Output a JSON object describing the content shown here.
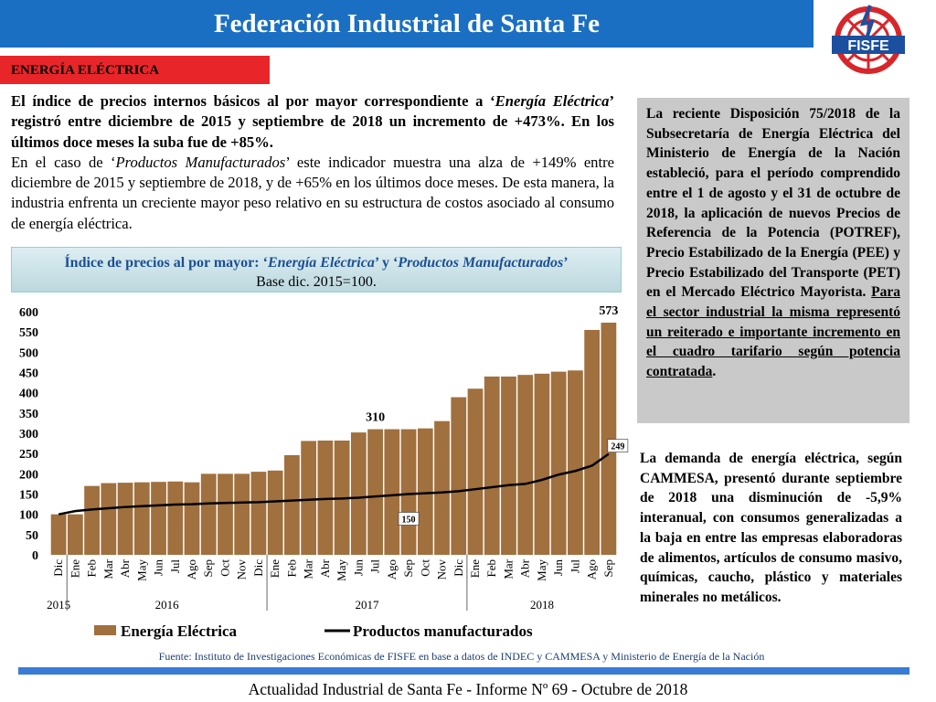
{
  "header": {
    "title": "Federación Industrial de Santa Fe",
    "logo": "FISFE"
  },
  "section": "ENERGÍA ELÉCTRICA",
  "intro": [
    [
      "El índice de precios internos básicos al por mayor correspondiente a ‘",
      "Energía Eléctrica",
      "’ registró entre diciembre de 2015 y septiembre de 2018 un incremento de +473%. En los últimos doce meses la suba fue de +85%."
    ],
    [
      "En el caso de ‘",
      "Productos Manufacturados",
      "’ este indicador muestra una alza de +149% entre diciembre de 2015 y septiembre de 2018, y de +65% en los últimos doce meses. De esta manera, la industria enfrenta un creciente mayor peso relativo en su estructura de costos asociado al consumo de energía eléctrica."
    ]
  ],
  "sidebox": [
    "La reciente Disposición 75/2018 de la Subsecretaría de Energía Eléctrica del Ministerio de Energía de la Nación estableció, para el período comprendido entre el 1 de agosto y el 31 de octubre de 2018, la aplicación de nuevos Precios de Referencia de la Potencia (POTREF), Precio Estabilizado de la Energía (PEE) y Precio Estabilizado del Transporte (PET) en el Mercado Eléctrico Mayorista. ",
    "Para el sector industrial la misma representó un reiterado e importante incremento en el cuadro tarifario según potencia contratada",
    "."
  ],
  "demand": "La demanda de energía eléctrica, según CAMMESA, presentó durante septiembre de 2018 una disminución de -5,9% interanual, con consumos generalizadas a la baja en entre las empresas elaboradoras de alimentos, artículos de consumo masivo, químicas, caucho, plástico y materiales minerales no metálicos.",
  "source": "Fuente: Instituto de Investigaciones Económicas de FISFE en base a datos de  INDEC y CAMMESA y Ministerio de Energía de la Nación",
  "footer": "Actualidad Industrial de Santa Fe - Informe Nº 69 - Octubre de 2018",
  "chart_data": {
    "type": "bar_line",
    "title": [
      "Índice de precios al por mayor: ‘",
      "Energía Eléctrica",
      "’ y ‘",
      "Productos Manufacturados",
      "’"
    ],
    "subtitle": "Base dic. 2015=100.",
    "categories": [
      "Dic",
      "Ene",
      "Feb",
      "Mar",
      "Abr",
      "May",
      "Jun",
      "Jul",
      "Ago",
      "Sep",
      "Oct",
      "Nov",
      "Dic",
      "Ene",
      "Feb",
      "Mar",
      "Abr",
      "May",
      "Jun",
      "Jul",
      "Ago",
      "Sep",
      "Oct",
      "Nov",
      "Dic",
      "Ene",
      "Feb",
      "Mar",
      "Abr",
      "May",
      "Jun",
      "Jul",
      "Ago",
      "Sep"
    ],
    "years": [
      "2015",
      "2016",
      "2017",
      "2018"
    ],
    "series": [
      {
        "name": "Energía Eléctrica",
        "kind": "bar",
        "color": "#a0703e",
        "values": [
          100,
          100,
          170,
          177,
          178,
          179,
          180,
          181,
          179,
          200,
          200,
          200,
          205,
          208,
          246,
          281,
          282,
          282,
          302,
          310,
          310,
          310,
          312,
          330,
          389,
          410,
          440,
          440,
          444,
          447,
          452,
          455,
          555,
          573
        ]
      },
      {
        "name": "Productos manufacturados",
        "kind": "line",
        "color": "#000000",
        "values": [
          100,
          108,
          112,
          115,
          118,
          120,
          122,
          124,
          125,
          127,
          128,
          129,
          130,
          132,
          134,
          136,
          138,
          139,
          141,
          144,
          147,
          150,
          152,
          154,
          157,
          162,
          167,
          172,
          175,
          185,
          198,
          207,
          220,
          249
        ]
      }
    ],
    "ylim": [
      0,
      600
    ],
    "yticks": [
      0,
      50,
      100,
      150,
      200,
      250,
      300,
      350,
      400,
      450,
      500,
      550,
      600
    ],
    "grid": false
  }
}
